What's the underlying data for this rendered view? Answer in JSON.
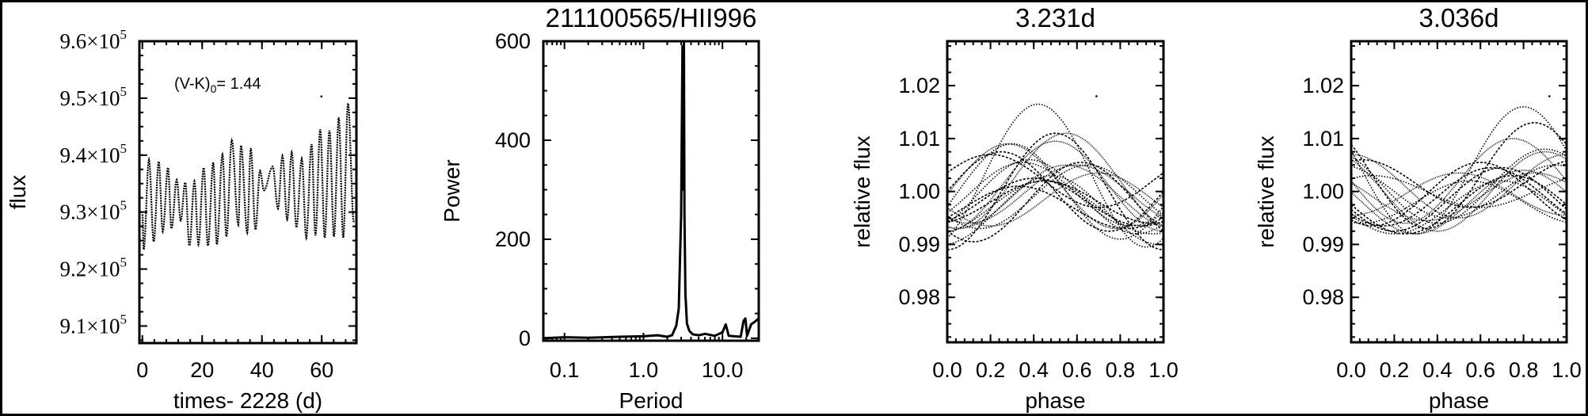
{
  "chart_data": [
    {
      "type": "scatter",
      "title": "",
      "xlabel": "times- 2228 (d)",
      "ylabel": "flux",
      "annotation": {
        "main": "(V-K)",
        "sub": "0",
        "rest": "= 1.44"
      },
      "xlim": [
        -1,
        71.6
      ],
      "ylim": [
        9.07,
        9.6
      ],
      "y_scale_note": "x10^5",
      "xticks": [
        {
          "v": 0,
          "label": "0"
        },
        {
          "v": 20,
          "label": "20"
        },
        {
          "v": 40,
          "label": "40"
        },
        {
          "v": 60,
          "label": "60"
        }
      ],
      "yticks": [
        {
          "v": 9.1,
          "label": "9.1×10",
          "exp": "5"
        },
        {
          "v": 9.2,
          "label": "9.2×10",
          "exp": "5"
        },
        {
          "v": 9.3,
          "label": "9.3×10",
          "exp": "5"
        },
        {
          "v": 9.4,
          "label": "9.4×10",
          "exp": "5"
        },
        {
          "v": 9.5,
          "label": "9.5×10",
          "exp": "5"
        },
        {
          "v": 9.6,
          "label": "9.6×10",
          "exp": "5"
        }
      ],
      "x": [
        0,
        0.44,
        2.21,
        3.8,
        5.48,
        6.81,
        8.58,
        9.73,
        11.49,
        12.82,
        14.32,
        15.74,
        17.42,
        18.74,
        20.51,
        21.93,
        23.7,
        24.93,
        26.79,
        28.12,
        29.89,
        32.1,
        32.98,
        35.1,
        36.25,
        37.84,
        39.35,
        40.67,
        43.59,
        45.36,
        46.86,
        48.45,
        49.96,
        51.55,
        53.32,
        54.82,
        56.59,
        57.91,
        59.5,
        61.01,
        62.6,
        64.1,
        65.69,
        67.2,
        68.79,
        70.73
      ],
      "y": [
        9.296,
        9.234,
        9.392,
        9.248,
        9.389,
        9.266,
        9.378,
        9.271,
        9.357,
        9.285,
        9.352,
        9.241,
        9.354,
        9.243,
        9.378,
        9.241,
        9.387,
        9.243,
        9.401,
        9.257,
        9.426,
        9.278,
        9.417,
        9.264,
        9.412,
        9.269,
        9.373,
        9.338,
        9.38,
        9.306,
        9.399,
        9.287,
        9.405,
        9.273,
        9.394,
        9.255,
        9.419,
        9.259,
        9.445,
        9.255,
        9.443,
        9.257,
        9.466,
        9.255,
        9.491,
        9.282
      ],
      "outlier": {
        "x": 59.9,
        "y": 9.503
      }
    },
    {
      "type": "line",
      "title": "211100565/HII996",
      "xlabel": "Period",
      "ylabel": "Power",
      "xscale": "log",
      "xlim": [
        0.054,
        28.8
      ],
      "ylim": [
        -5,
        600
      ],
      "xticks": [
        {
          "v": 0.1,
          "label": "0.1"
        },
        {
          "v": 1.0,
          "label": "1.0"
        },
        {
          "v": 10.0,
          "label": "10.0"
        }
      ],
      "yticks": [
        {
          "v": 0,
          "label": "0"
        },
        {
          "v": 200,
          "label": "200"
        },
        {
          "v": 400,
          "label": "400"
        },
        {
          "v": 600,
          "label": "600"
        }
      ],
      "x": [
        0.054,
        0.1,
        0.2,
        0.5,
        1.0,
        1.5,
        2.0,
        2.3,
        2.6,
        2.8,
        3.0,
        3.12,
        3.2,
        3.25,
        3.3,
        3.4,
        3.55,
        3.8,
        4.2,
        5,
        6,
        8,
        10,
        11,
        12,
        14,
        17,
        18.5,
        19.5,
        20.5,
        23,
        25,
        28.8
      ],
      "y": [
        0,
        2,
        1,
        3,
        4,
        6,
        3,
        6,
        25,
        60,
        250,
        590,
        300,
        600,
        250,
        90,
        30,
        15,
        8,
        6,
        9,
        5,
        12,
        28,
        5,
        4,
        3,
        35,
        40,
        5,
        28,
        32,
        40
      ]
    },
    {
      "type": "scatter",
      "title": "3.231d",
      "xlabel": "phase",
      "ylabel": "relative flux",
      "xlim": [
        0,
        1
      ],
      "ylim": [
        0.9715,
        1.0284
      ],
      "xticks": [
        {
          "v": 0,
          "label": "0.0"
        },
        {
          "v": 0.2,
          "label": "0.2"
        },
        {
          "v": 0.4,
          "label": "0.4"
        },
        {
          "v": 0.6,
          "label": "0.6"
        },
        {
          "v": 0.8,
          "label": "0.8"
        },
        {
          "v": 1.0,
          "label": "1.0"
        }
      ],
      "yticks": [
        {
          "v": 0.98,
          "label": "0.98"
        },
        {
          "v": 0.99,
          "label": "0.99"
        },
        {
          "v": 1.0,
          "label": "1.00"
        },
        {
          "v": 1.01,
          "label": "1.01"
        },
        {
          "v": 1.02,
          "label": "1.02"
        }
      ],
      "cycles_peak_phase": [
        0.42,
        0.5,
        0.28,
        0.3,
        0.62,
        0.55,
        0.45,
        0.4,
        0.6,
        0.35,
        0.25,
        0.5,
        0.65,
        0.45,
        0.55,
        0.38,
        0.2,
        0.7,
        0.48,
        0.33
      ],
      "cycles_amplitude": [
        0.0135,
        0.011,
        0.008,
        0.009,
        0.0075,
        0.006,
        0.005,
        0.0045,
        0.0055,
        0.006,
        0.0075,
        0.0085,
        0.006,
        0.004,
        0.009,
        0.007,
        0.005,
        0.005,
        0.0065,
        0.004
      ],
      "cycles_mean": [
        1.003,
        1.0,
        1.001,
        1.0,
        0.998,
        0.999,
        0.997,
        0.998,
        0.9995,
        0.9995,
        1.0,
        1.001,
        0.999,
        0.998,
        1.002,
        0.999,
        1.002,
        0.9985,
        0.9965,
        0.997
      ],
      "outlier": {
        "x": 0.69,
        "y": 1.018
      }
    },
    {
      "type": "scatter",
      "title": "3.036d",
      "xlabel": "phase",
      "ylabel": "relative flux",
      "xlim": [
        0,
        1
      ],
      "ylim": [
        0.9715,
        1.0284
      ],
      "xticks": [
        {
          "v": 0,
          "label": "0.0"
        },
        {
          "v": 0.2,
          "label": "0.2"
        },
        {
          "v": 0.4,
          "label": "0.4"
        },
        {
          "v": 0.6,
          "label": "0.6"
        },
        {
          "v": 0.8,
          "label": "0.8"
        },
        {
          "v": 1.0,
          "label": "1.0"
        }
      ],
      "yticks": [
        {
          "v": 0.98,
          "label": "0.98"
        },
        {
          "v": 0.99,
          "label": "0.99"
        },
        {
          "v": 1.0,
          "label": "1.00"
        },
        {
          "v": 1.01,
          "label": "1.01"
        },
        {
          "v": 1.02,
          "label": "1.02"
        }
      ],
      "cycles_peak_phase": [
        0.8,
        0.85,
        0.75,
        0.9,
        0.7,
        0.0,
        0.95,
        0.65,
        0.8,
        0.55,
        0.75,
        0.85,
        0.1,
        0.6,
        0.9,
        0.7,
        0.05,
        0.5
      ],
      "cycles_amplitude": [
        0.012,
        0.01,
        0.008,
        0.007,
        0.006,
        0.006,
        0.005,
        0.0055,
        0.006,
        0.004,
        0.0055,
        0.0045,
        0.003,
        0.006,
        0.0075,
        0.005,
        0.0045,
        0.004
      ],
      "cycles_mean": [
        1.004,
        1.003,
        1.002,
        1.001,
        0.9985,
        1.001,
        1.0,
        0.999,
        0.998,
        0.998,
        0.9975,
        0.999,
        1.0,
        0.9995,
        1.0,
        0.997,
        1.0015,
        0.9995
      ],
      "outlier": {
        "x": 0.92,
        "y": 1.018
      }
    }
  ]
}
